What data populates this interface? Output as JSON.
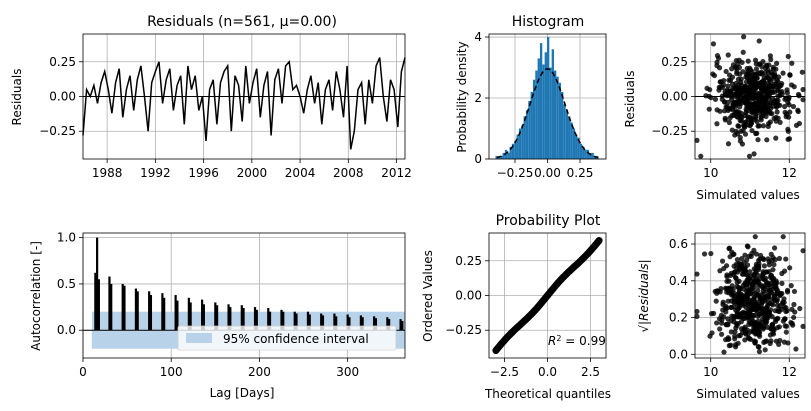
{
  "chart_data": [
    {
      "id": "residuals",
      "type": "line",
      "title": "Residuals (n=561, μ=0.00)",
      "xlabel": "",
      "ylabel": "Residuals",
      "xlim": [
        1986.0,
        2012.7
      ],
      "ylim": [
        -0.45,
        0.45
      ],
      "xticks": [
        1988,
        1992,
        1996,
        2000,
        2004,
        2008,
        2012
      ],
      "yticks": [
        -0.25,
        0.0,
        0.25
      ],
      "ytick_labels": [
        "−0.25",
        "0.00",
        "0.25"
      ],
      "grid": true,
      "zero_line": 0.0,
      "series": [
        {
          "x": [
            1986.0,
            1986.3,
            1986.6,
            1986.9,
            1987.2,
            1987.5,
            1987.8,
            1988.1,
            1988.4,
            1988.7,
            1989.0,
            1989.3,
            1989.6,
            1989.9,
            1990.2,
            1990.5,
            1990.8,
            1991.1,
            1991.4,
            1991.7,
            1992.0,
            1992.3,
            1992.6,
            1992.9,
            1993.2,
            1993.5,
            1993.8,
            1994.1,
            1994.4,
            1994.7,
            1995.0,
            1995.3,
            1995.6,
            1995.9,
            1996.2,
            1996.5,
            1996.8,
            1997.1,
            1997.4,
            1997.7,
            1998.0,
            1998.3,
            1998.6,
            1998.9,
            1999.2,
            1999.5,
            1999.8,
            2000.1,
            2000.4,
            2000.7,
            2001.0,
            2001.3,
            2001.6,
            2001.9,
            2002.2,
            2002.5,
            2002.8,
            2003.1,
            2003.4,
            2003.7,
            2004.0,
            2004.3,
            2004.6,
            2004.9,
            2005.2,
            2005.5,
            2005.8,
            2006.1,
            2006.4,
            2006.7,
            2007.0,
            2007.3,
            2007.6,
            2007.9,
            2008.2,
            2008.5,
            2008.8,
            2009.1,
            2009.4,
            2009.7,
            2010.0,
            2010.3,
            2010.6,
            2010.9,
            2011.2,
            2011.5,
            2011.8,
            2012.1,
            2012.4,
            2012.7
          ],
          "y": [
            -0.28,
            0.05,
            0.0,
            0.08,
            -0.05,
            0.1,
            0.18,
            0.05,
            -0.12,
            0.1,
            0.2,
            -0.15,
            0.05,
            0.15,
            -0.1,
            0.12,
            0.22,
            0.0,
            -0.25,
            0.1,
            0.18,
            0.25,
            -0.05,
            0.12,
            0.2,
            -0.1,
            0.08,
            0.15,
            -0.2,
            0.22,
            0.05,
            0.15,
            -0.1,
            0.0,
            -0.32,
            0.05,
            0.12,
            -0.2,
            0.1,
            0.18,
            0.22,
            -0.25,
            0.15,
            0.08,
            -0.18,
            0.22,
            -0.05,
            0.1,
            0.2,
            -0.15,
            0.08,
            0.18,
            -0.28,
            0.12,
            0.2,
            -0.05,
            0.22,
            0.25,
            0.05,
            0.08,
            0.0,
            -0.12,
            0.05,
            0.15,
            -0.05,
            0.1,
            -0.2,
            0.05,
            0.12,
            -0.1,
            0.18,
            0.05,
            -0.15,
            0.22,
            -0.38,
            -0.25,
            0.05,
            0.1,
            -0.2,
            0.12,
            -0.05,
            0.22,
            0.28,
            0.0,
            -0.18,
            0.12,
            0.05,
            -0.22,
            0.18,
            0.28
          ]
        }
      ]
    },
    {
      "id": "histogram",
      "type": "bar",
      "title": "Histogram",
      "xlabel": "",
      "ylabel": "Probability density",
      "xlim": [
        -0.45,
        0.45
      ],
      "ylim": [
        0,
        4.1
      ],
      "xticks": [
        -0.25,
        0.0,
        0.25
      ],
      "xtick_labels": [
        "−0.25",
        "0.00",
        "0.25"
      ],
      "yticks": [
        0,
        2,
        4
      ],
      "grid": true,
      "bin_width": 0.018,
      "bins_start": -0.4,
      "values": [
        0.1,
        0.1,
        0.1,
        0.2,
        0.3,
        0.2,
        0.4,
        0.5,
        0.6,
        0.8,
        1.0,
        1.1,
        1.4,
        1.6,
        1.9,
        2.2,
        2.6,
        2.9,
        3.3,
        3.8,
        3.1,
        3.5,
        4.0,
        3.0,
        3.6,
        2.9,
        2.7,
        2.5,
        2.2,
        1.8,
        1.6,
        1.4,
        1.2,
        1.0,
        0.8,
        0.7,
        0.5,
        0.4,
        0.3,
        0.3,
        0.2,
        0.2,
        0.1,
        0.1
      ],
      "fit_curve": {
        "mean": 0.0,
        "std": 0.135,
        "style": "dashed"
      }
    },
    {
      "id": "scatter_residuals",
      "type": "scatter",
      "title": "",
      "xlabel": "Simulated values",
      "ylabel": "Residuals",
      "xlim": [
        9.6,
        12.4
      ],
      "ylim": [
        -0.45,
        0.45
      ],
      "xticks": [
        10,
        12
      ],
      "yticks": [
        -0.25,
        0.0,
        0.25
      ],
      "ytick_labels": [
        "−0.25",
        "0.00",
        "0.25"
      ],
      "grid": true,
      "zero_line": 0.0,
      "points": {
        "n": 561,
        "x_mean": 11.1,
        "x_std": 0.5,
        "y_mean": 0.0,
        "y_std": 0.13,
        "seed": 7
      }
    },
    {
      "id": "autocorrelation",
      "type": "bar",
      "title": "",
      "xlabel": "Lag [Days]",
      "ylabel": "Autocorrelation [-]",
      "xlim": [
        0,
        365
      ],
      "ylim": [
        -0.3,
        1.05
      ],
      "xticks": [
        0,
        100,
        200,
        300
      ],
      "yticks": [
        0.0,
        0.5,
        1.0
      ],
      "ytick_labels": [
        "0.0",
        "0.5",
        "1.0"
      ],
      "grid": true,
      "zero_line": 0.0,
      "lags": [
        14,
        16,
        18,
        30,
        32,
        45,
        47,
        60,
        62,
        75,
        77,
        90,
        92,
        105,
        107,
        120,
        122,
        135,
        137,
        150,
        152,
        165,
        167,
        180,
        182,
        195,
        197,
        210,
        212,
        225,
        227,
        240,
        242,
        255,
        257,
        270,
        272,
        285,
        287,
        300,
        302,
        315,
        317,
        330,
        332,
        345,
        347,
        360,
        362
      ],
      "values": [
        0.62,
        1.0,
        0.55,
        0.58,
        0.5,
        0.5,
        0.48,
        0.45,
        0.42,
        0.42,
        0.38,
        0.4,
        0.35,
        0.38,
        0.32,
        0.35,
        0.3,
        0.33,
        0.28,
        0.3,
        0.27,
        0.28,
        0.25,
        0.27,
        0.24,
        0.25,
        0.22,
        0.24,
        0.2,
        0.22,
        0.2,
        0.2,
        0.18,
        0.2,
        0.17,
        0.18,
        0.16,
        0.18,
        0.15,
        0.17,
        0.14,
        0.16,
        0.14,
        0.15,
        0.13,
        0.14,
        0.12,
        0.12,
        0.1
      ],
      "confidence_interval": {
        "lower": -0.2,
        "upper": 0.2
      },
      "legend": {
        "entries": [
          "95% confidence interval"
        ],
        "placement": "lower-right"
      }
    },
    {
      "id": "probability_plot",
      "type": "scatter",
      "title": "Probability Plot",
      "xlabel": "Theoretical quantiles",
      "ylabel": "Ordered Values",
      "xlim": [
        -3.4,
        3.4
      ],
      "ylim": [
        -0.45,
        0.45
      ],
      "xticks": [
        -2.5,
        0.0,
        2.5
      ],
      "xtick_labels": [
        "−2.5",
        "0.0",
        "2.5"
      ],
      "yticks": [
        -0.25,
        0.0,
        0.25
      ],
      "ytick_labels": [
        "−0.25",
        "0.00",
        "0.25"
      ],
      "grid": true,
      "slope": 0.133,
      "intercept": 0.0,
      "annotation": {
        "prefix": "R",
        "sup": "2",
        "suffix": " = 0.99"
      }
    },
    {
      "id": "scatter_sqrt",
      "type": "scatter",
      "title": "",
      "xlabel": "Simulated values",
      "ylabel": "√|Residuals|",
      "xlim": [
        9.6,
        12.4
      ],
      "ylim": [
        -0.02,
        0.66
      ],
      "xticks": [
        10,
        12
      ],
      "yticks": [
        0.0,
        0.2,
        0.4,
        0.6
      ],
      "ytick_labels": [
        "0.0",
        "0.2",
        "0.4",
        "0.6"
      ],
      "grid": true,
      "points": {
        "n": 561,
        "x_mean": 11.1,
        "x_std": 0.5,
        "seed": 11
      }
    }
  ]
}
